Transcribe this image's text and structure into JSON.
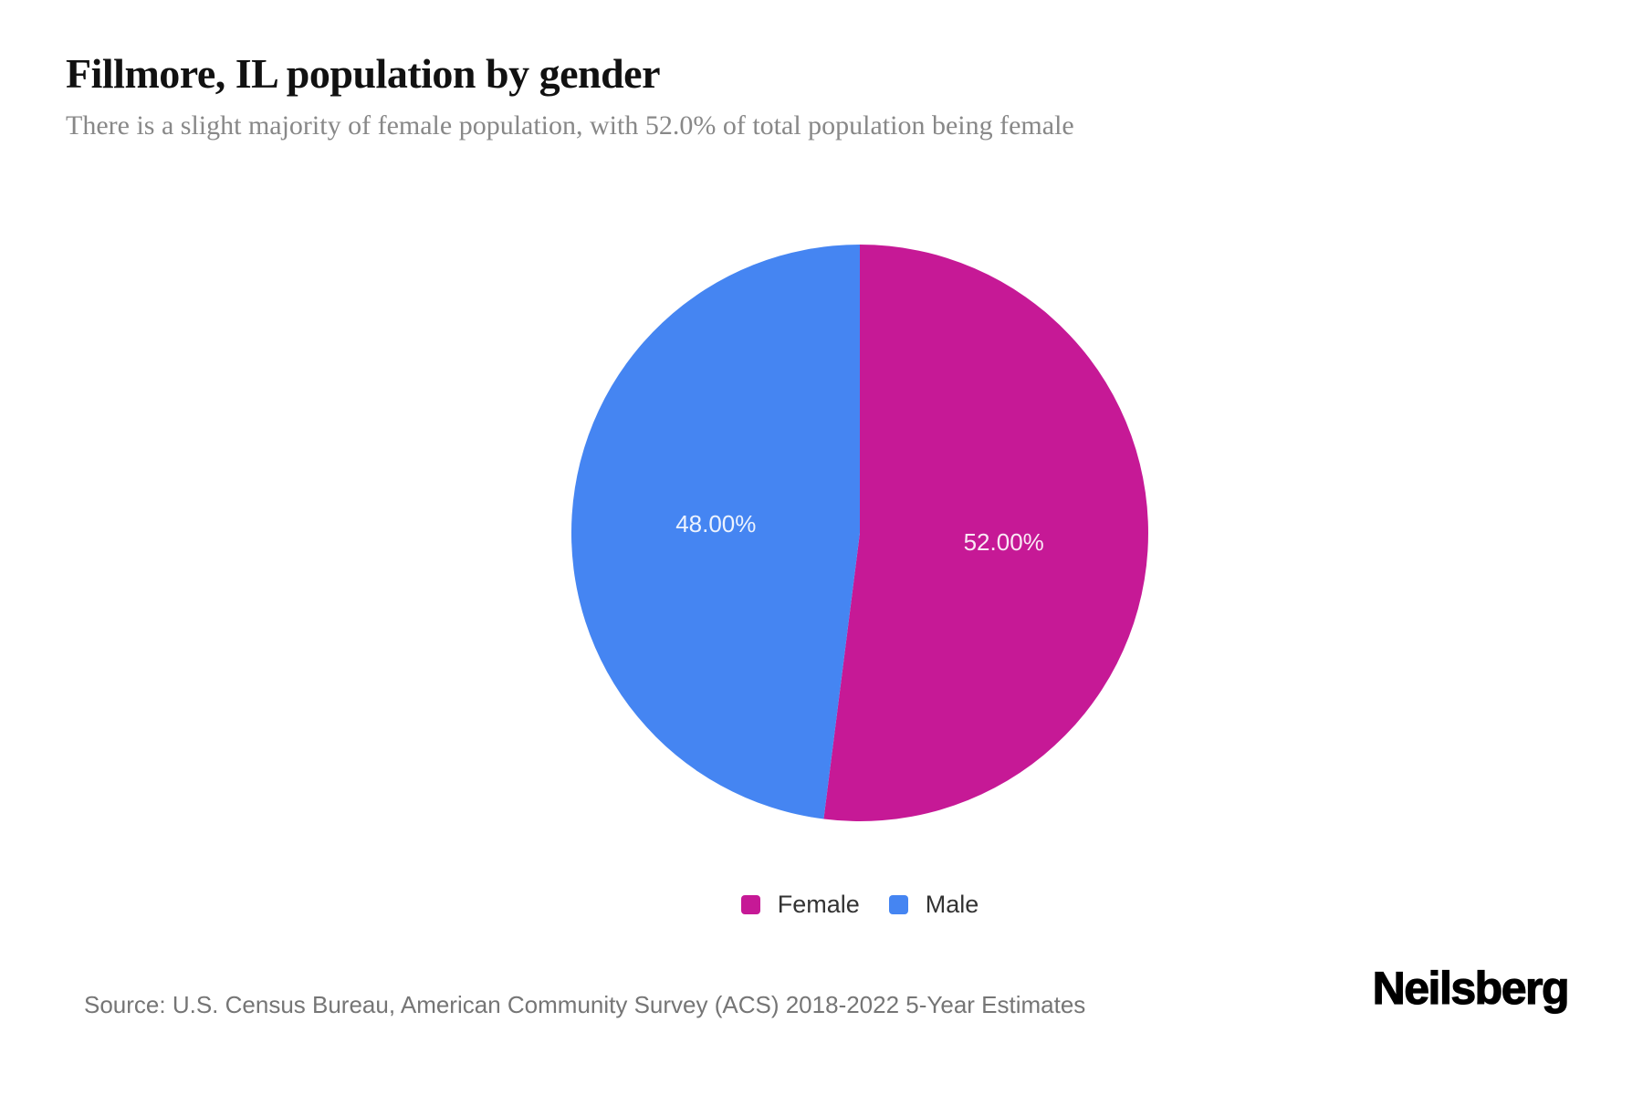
{
  "page": {
    "title": "Fillmore, IL population by gender",
    "subtitle": "There is a slight majority of female population, with 52.0% of total population being female",
    "source": "Source: U.S. Census Bureau, American Community Survey (ACS) 2018-2022 5-Year Estimates",
    "brand": "Neilsberg"
  },
  "chart_data": {
    "type": "pie",
    "title": "Fillmore, IL population by gender",
    "subtitle": "There is a slight majority of female population, with 52.0% of total population being female",
    "slices": [
      {
        "label": "Female",
        "value": 52.0,
        "display": "52.00%",
        "color": "#C61996"
      },
      {
        "label": "Male",
        "value": 48.0,
        "display": "48.00%",
        "color": "#4585F2"
      }
    ],
    "start_angle_deg": 0,
    "direction": "clockwise",
    "legend_position": "bottom-center",
    "data_label_color": "rgba(255,255,255,0.9)",
    "data_label_distance_ratio": 0.5
  }
}
